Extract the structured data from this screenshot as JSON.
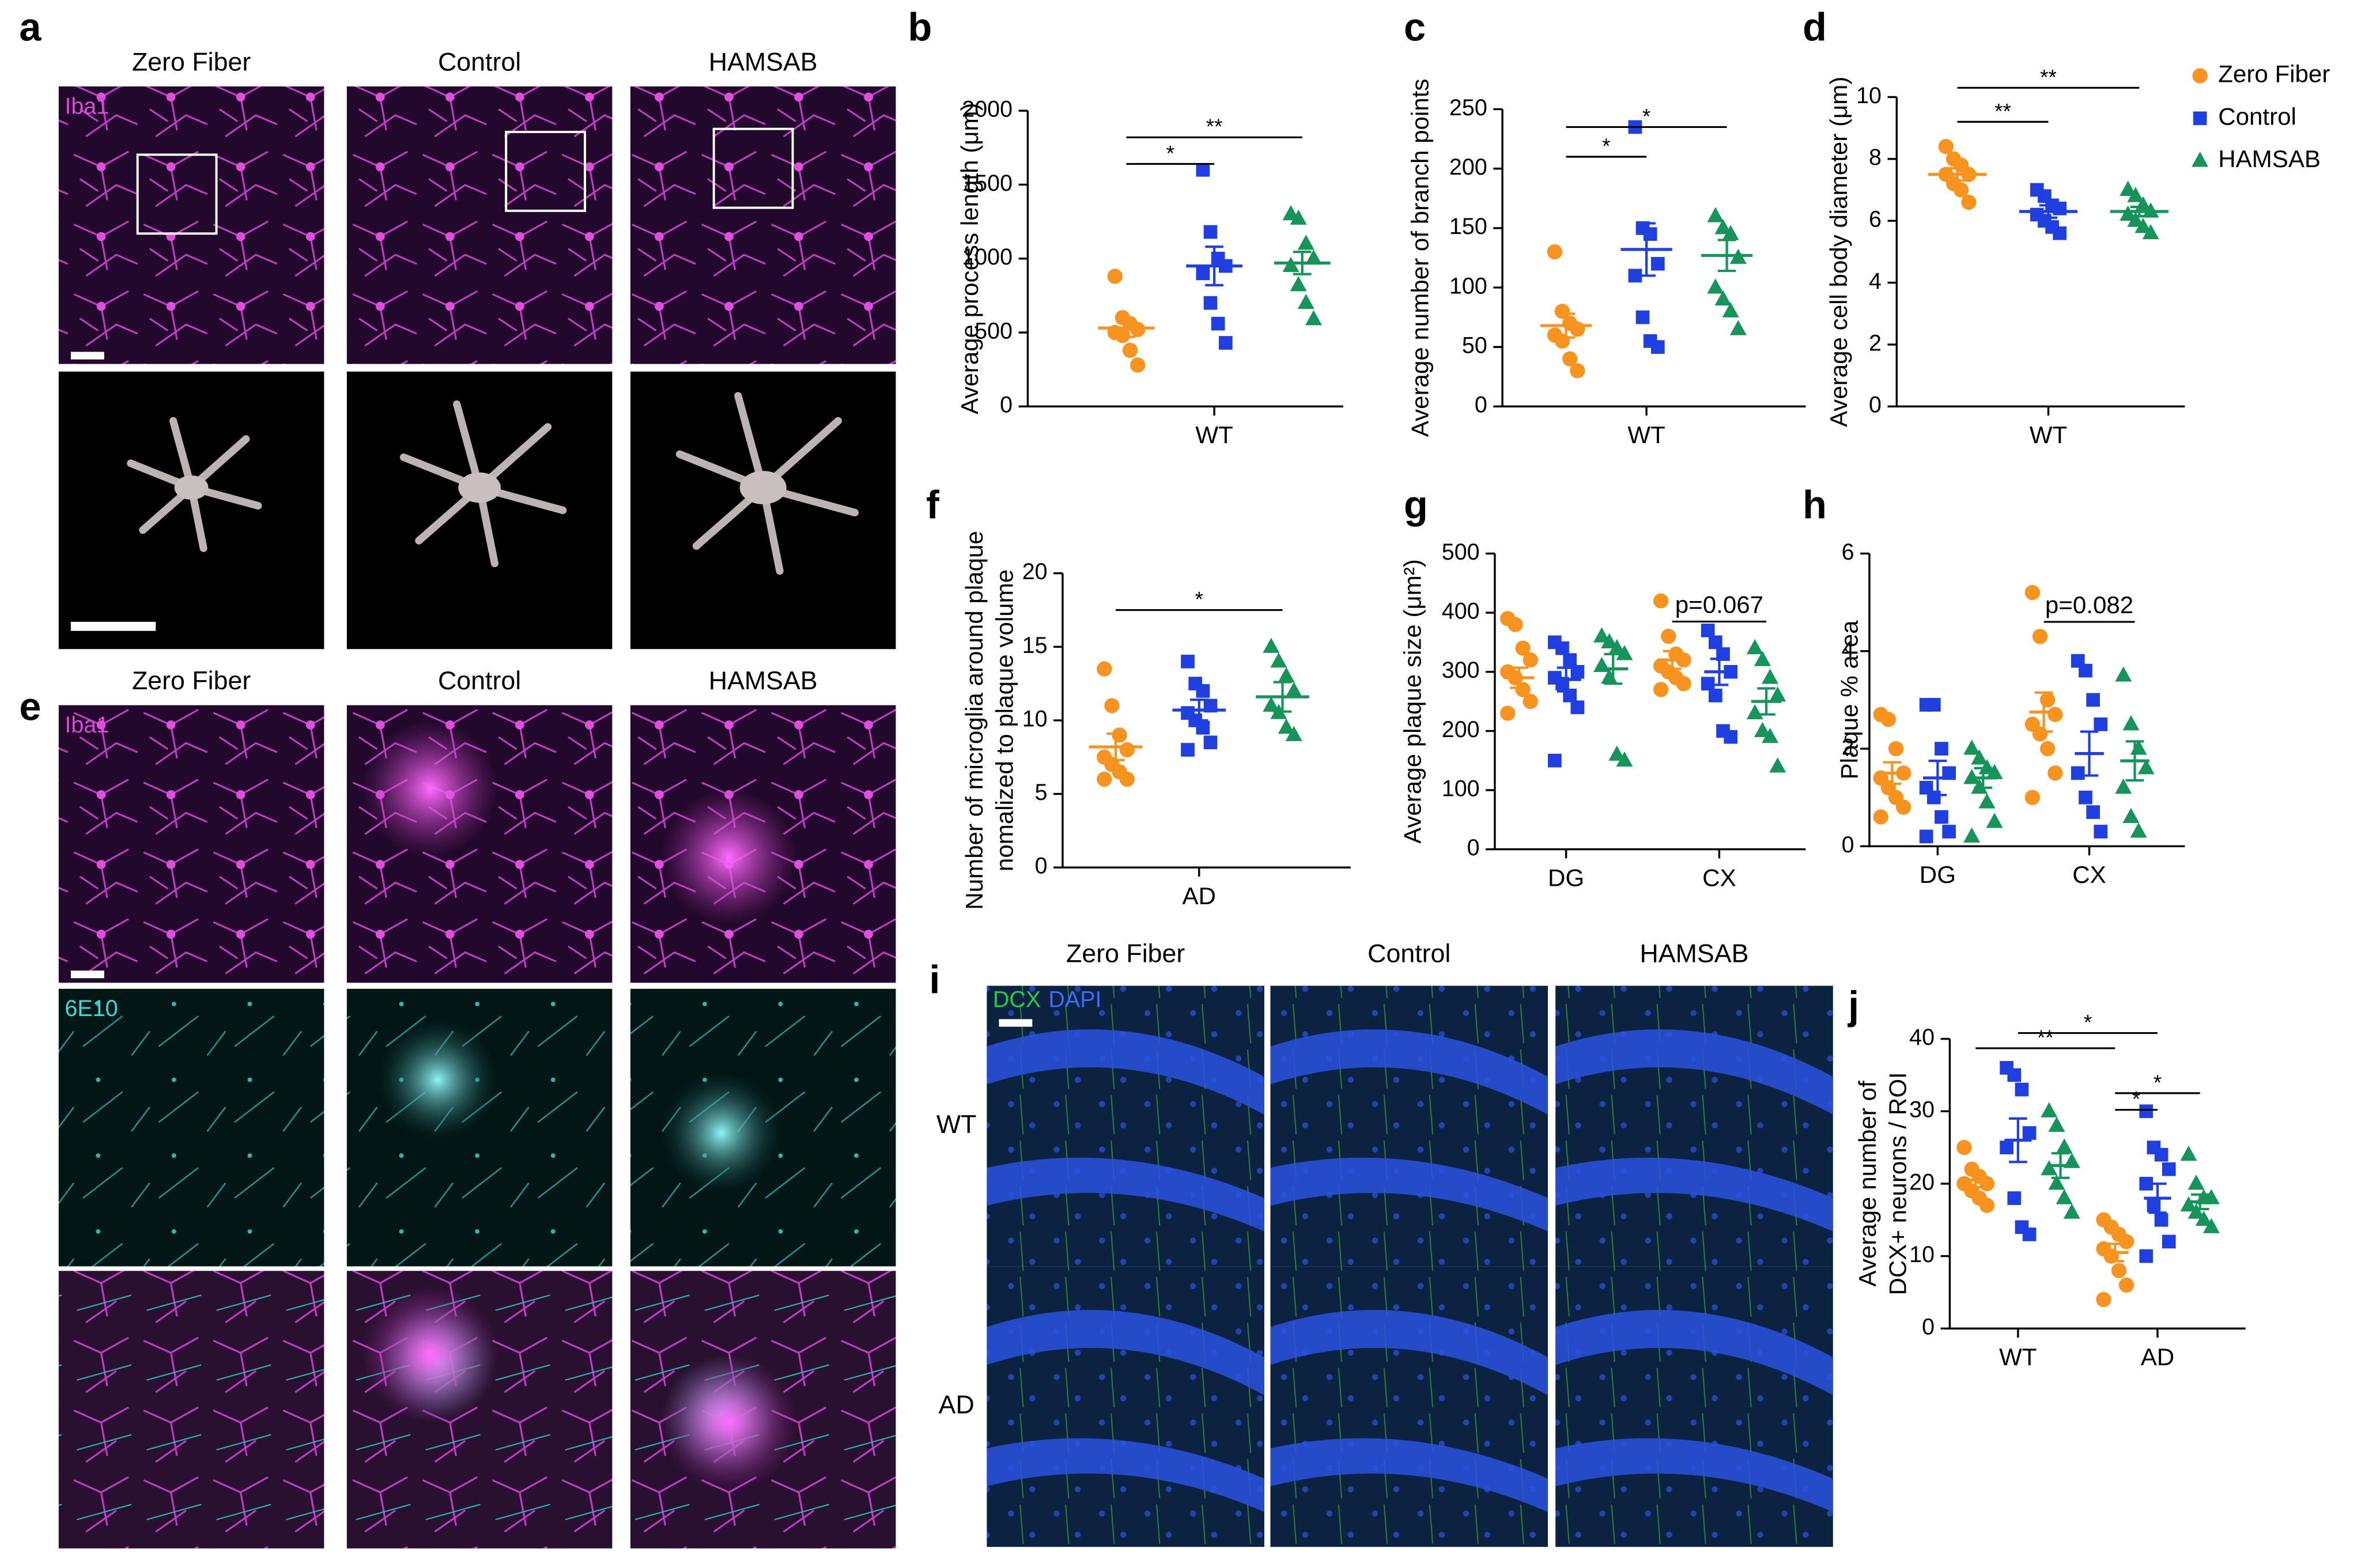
{
  "panels": [
    {
      "label": "a",
      "columns": [
        "Zero Fiber",
        "Control",
        "HAMSAB"
      ],
      "channels": [
        {
          "name": "Iba1",
          "color": "#d94ad9"
        }
      ]
    },
    {
      "label": "e",
      "columns": [
        "Zero Fiber",
        "Control",
        "HAMSAB"
      ],
      "channels": [
        {
          "name": "Iba1",
          "color": "#d94ad9"
        },
        {
          "name": "6E10",
          "color": "#33dede"
        }
      ]
    },
    {
      "label": "i",
      "columns": [
        "Zero Fiber",
        "Control",
        "HAMSAB"
      ],
      "channels": [
        {
          "name": "DCX",
          "color": "#22cc44"
        },
        {
          "name": "DAPI",
          "color": "#3a6cff"
        }
      ],
      "rows": [
        "WT",
        "AD"
      ]
    }
  ],
  "chart_data": [
    {
      "type": "dot",
      "label": "b",
      "ylabel": [
        "Average process length (μm)"
      ],
      "categories": [
        "WT"
      ],
      "ylim": [
        0,
        2000
      ],
      "yticks": [
        0,
        500,
        1000,
        1500,
        2000
      ],
      "series": [
        {
          "color": "#f7931e",
          "marker": "circle",
          "values": [
            [
              880,
              600,
              560,
              520,
              500,
              480,
              380,
              280
            ]
          ],
          "means": [
            530
          ],
          "sems": [
            60
          ]
        },
        {
          "color": "#1f3fe0",
          "marker": "square",
          "values": [
            [
              1600,
              1180,
              1000,
              950,
              900,
              700,
              560,
              430
            ]
          ],
          "means": [
            950
          ],
          "sems": [
            130
          ]
        },
        {
          "color": "#16945a",
          "marker": "triangle",
          "values": [
            [
              1300,
              1270,
              1100,
              1000,
              950,
              820,
              700,
              590
            ]
          ],
          "means": [
            970
          ],
          "sems": [
            75
          ]
        }
      ],
      "annotations": [
        {
          "text": "*",
          "y": 1640,
          "from": [
            0,
            0
          ],
          "to": [
            0,
            1
          ]
        },
        {
          "text": "**",
          "y": 1820,
          "from": [
            0,
            0
          ],
          "to": [
            0,
            2
          ]
        }
      ]
    },
    {
      "type": "dot",
      "label": "c",
      "ylabel": [
        "Average number of branch points"
      ],
      "categories": [
        "WT"
      ],
      "ylim": [
        0,
        250
      ],
      "yticks": [
        0,
        50,
        100,
        150,
        200,
        250
      ],
      "series": [
        {
          "color": "#f7931e",
          "marker": "circle",
          "values": [
            [
              130,
              80,
              70,
              65,
              60,
              55,
              40,
              30
            ]
          ],
          "means": [
            68
          ],
          "sems": [
            10
          ]
        },
        {
          "color": "#1f3fe0",
          "marker": "square",
          "values": [
            [
              235,
              150,
              145,
              120,
              110,
              75,
              55,
              50
            ]
          ],
          "means": [
            132
          ],
          "sems": [
            22
          ]
        },
        {
          "color": "#16945a",
          "marker": "triangle",
          "values": [
            [
              160,
              150,
              145,
              125,
              100,
              90,
              80,
              65
            ]
          ],
          "means": [
            127
          ],
          "sems": [
            13
          ]
        }
      ],
      "annotations": [
        {
          "text": "*",
          "y": 210,
          "from": [
            0,
            0
          ],
          "to": [
            0,
            1
          ]
        },
        {
          "text": "*",
          "y": 235,
          "from": [
            0,
            0
          ],
          "to": [
            0,
            2
          ]
        }
      ]
    },
    {
      "type": "dot",
      "label": "d",
      "ylabel": [
        "Average cell body diameter (μm)"
      ],
      "categories": [
        "WT"
      ],
      "ylim": [
        0,
        10
      ],
      "yticks": [
        0,
        2,
        4,
        6,
        8,
        10
      ],
      "legend": "right",
      "series": [
        {
          "name": "Zero Fiber",
          "color": "#f7931e",
          "marker": "circle",
          "values": [
            [
              8.4,
              8.0,
              7.8,
              7.5,
              7.5,
              7.2,
              7.0,
              6.6
            ]
          ],
          "means": [
            7.5
          ],
          "sems": [
            0.2
          ]
        },
        {
          "name": "Control",
          "color": "#1f3fe0",
          "marker": "square",
          "values": [
            [
              7.0,
              6.8,
              6.5,
              6.4,
              6.2,
              6.0,
              5.8,
              5.6
            ]
          ],
          "means": [
            6.3
          ],
          "sems": [
            0.2
          ]
        },
        {
          "name": "HAMSAB",
          "color": "#16945a",
          "marker": "triangle",
          "values": [
            [
              7.0,
              6.8,
              6.5,
              6.3,
              6.2,
              6.0,
              5.8,
              5.6
            ]
          ],
          "means": [
            6.3
          ],
          "sems": [
            0.15
          ]
        }
      ],
      "annotations": [
        {
          "text": "**",
          "y": 9.2,
          "from": [
            0,
            0
          ],
          "to": [
            0,
            1
          ]
        },
        {
          "text": "**",
          "y": 10.3,
          "from": [
            0,
            0
          ],
          "to": [
            0,
            2
          ]
        }
      ]
    },
    {
      "type": "dot",
      "label": "f",
      "ylabel": [
        "Number of microglia around plaque",
        "nomalized to plaque volume"
      ],
      "categories": [
        "AD"
      ],
      "ylim": [
        0,
        20
      ],
      "yticks": [
        0,
        5,
        10,
        15,
        20
      ],
      "series": [
        {
          "color": "#f7931e",
          "marker": "circle",
          "values": [
            [
              13.5,
              11,
              9,
              8,
              7.5,
              7,
              6.5,
              6,
              6
            ]
          ],
          "means": [
            8.2
          ],
          "sems": [
            0.9
          ]
        },
        {
          "color": "#1f3fe0",
          "marker": "square",
          "values": [
            [
              14,
              12.5,
              12,
              11,
              10.5,
              10,
              9.5,
              8.5,
              8
            ]
          ],
          "means": [
            10.7
          ],
          "sems": [
            0.7
          ]
        },
        {
          "color": "#16945a",
          "marker": "triangle",
          "values": [
            [
              15,
              14,
              13,
              12,
              11,
              10.5,
              9.5,
              9
            ]
          ],
          "means": [
            11.6
          ],
          "sems": [
            1
          ]
        }
      ],
      "annotations": [
        {
          "text": "*",
          "y": 17.5,
          "from": [
            0,
            0
          ],
          "to": [
            0,
            2
          ]
        }
      ]
    },
    {
      "type": "dot",
      "label": "g",
      "ylabel": [
        "Average plaque size (μm²)"
      ],
      "categories": [
        "DG",
        "CX"
      ],
      "ylim": [
        0,
        500
      ],
      "yticks": [
        0,
        100,
        200,
        300,
        400,
        500
      ],
      "series": [
        {
          "color": "#f7931e",
          "marker": "circle",
          "values": [
            [
              390,
              380,
              340,
              320,
              300,
              290,
              270,
              250,
              230
            ],
            [
              420,
              360,
              330,
              320,
              310,
              300,
              290,
              280,
              270
            ]
          ],
          "means": [
            290,
            320
          ],
          "sems": [
            17,
            15
          ]
        },
        {
          "color": "#1f3fe0",
          "marker": "square",
          "values": [
            [
              350,
              340,
              320,
              300,
              290,
              280,
              260,
              240,
              150
            ],
            [
              370,
              350,
              330,
              300,
              280,
              260,
              200,
              190
            ]
          ],
          "means": [
            287,
            300
          ],
          "sems": [
            20,
            22
          ]
        },
        {
          "color": "#16945a",
          "marker": "triangle",
          "values": [
            [
              360,
              350,
              340,
              330,
              310,
              290,
              160,
              150
            ],
            [
              340,
              320,
              290,
              260,
              230,
              200,
              190,
              140
            ]
          ],
          "means": [
            305,
            250
          ],
          "sems": [
            25,
            22
          ]
        }
      ],
      "annotations": [
        {
          "text": "p=0.067",
          "y": 385,
          "from": [
            1,
            0
          ],
          "to": [
            1,
            2
          ]
        }
      ]
    },
    {
      "type": "dot",
      "label": "h",
      "ylabel": [
        "Plaque % area"
      ],
      "categories": [
        "DG",
        "CX"
      ],
      "ylim": [
        0,
        6
      ],
      "yticks": [
        0,
        2,
        4,
        6
      ],
      "series": [
        {
          "color": "#f7931e",
          "marker": "circle",
          "values": [
            [
              2.7,
              2.6,
              2.0,
              1.5,
              1.4,
              1.2,
              1.0,
              0.8,
              0.6
            ],
            [
              5.2,
              4.3,
              3.0,
              2.7,
              2.5,
              2.3,
              2.0,
              1.5,
              1.0
            ]
          ],
          "means": [
            1.5,
            2.75
          ],
          "sems": [
            0.22,
            0.4
          ]
        },
        {
          "color": "#1f3fe0",
          "marker": "square",
          "values": [
            [
              2.9,
              2.9,
              2.0,
              1.5,
              1.2,
              1.0,
              0.6,
              0.3,
              0.2
            ],
            [
              3.8,
              3.6,
              3.0,
              2.5,
              1.5,
              1.0,
              0.7,
              0.3
            ]
          ],
          "means": [
            1.4,
            1.9
          ],
          "sems": [
            0.35,
            0.45
          ]
        },
        {
          "color": "#16945a",
          "marker": "triangle",
          "values": [
            [
              2.0,
              1.8,
              1.6,
              1.5,
              1.4,
              1.2,
              0.9,
              0.5,
              0.2
            ],
            [
              3.5,
              2.5,
              2.0,
              1.6,
              1.2,
              0.6,
              0.3
            ]
          ],
          "means": [
            1.4,
            1.75
          ],
          "sems": [
            0.2,
            0.4
          ]
        }
      ],
      "annotations": [
        {
          "text": "p=0.082",
          "y": 4.6,
          "from": [
            1,
            0
          ],
          "to": [
            1,
            2
          ]
        }
      ]
    },
    {
      "type": "dot",
      "label": "j",
      "ylabel": [
        "Average number of",
        "DCX+ neurons / ROI"
      ],
      "categories": [
        "WT",
        "AD"
      ],
      "ylim": [
        0,
        40
      ],
      "yticks": [
        0,
        10,
        20,
        30,
        40
      ],
      "series": [
        {
          "color": "#f7931e",
          "marker": "circle",
          "values": [
            [
              25,
              22,
              21,
              20,
              20,
              19,
              18,
              17
            ],
            [
              15,
              14,
              13,
              12,
              11,
              10,
              8,
              6,
              4
            ]
          ],
          "means": [
            20.5,
            10.5
          ],
          "sems": [
            1,
            1.2
          ]
        },
        {
          "color": "#1f3fe0",
          "marker": "square",
          "values": [
            [
              36,
              35,
              33,
              27,
              25,
              18,
              14,
              13
            ],
            [
              30,
              25,
              24,
              22,
              20,
              17,
              15,
              12,
              10
            ]
          ],
          "means": [
            26,
            18
          ],
          "sems": [
            3,
            2
          ]
        },
        {
          "color": "#16945a",
          "marker": "triangle",
          "values": [
            [
              30,
              28,
              25,
              23,
              22,
              20,
              18,
              16
            ],
            [
              24,
              20,
              18,
              18,
              17,
              16,
              15,
              14
            ]
          ],
          "means": [
            22.5,
            17.5
          ],
          "sems": [
            1.7,
            1
          ]
        }
      ],
      "annotations": [
        {
          "text": "**",
          "y": 38.7,
          "from": [
            0,
            0
          ],
          "to": [
            1,
            0
          ]
        },
        {
          "text": "*",
          "y": 40.8,
          "from": [
            0,
            1
          ],
          "to": [
            1,
            1
          ]
        },
        {
          "text": "*",
          "y": 30.2,
          "from": [
            1,
            0
          ],
          "to": [
            1,
            1
          ]
        },
        {
          "text": "*",
          "y": 32.5,
          "from": [
            1,
            0
          ],
          "to": [
            1,
            2
          ]
        }
      ]
    }
  ]
}
